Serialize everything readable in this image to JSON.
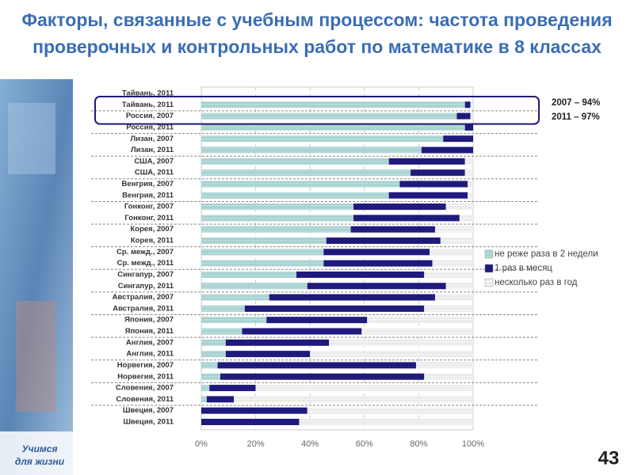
{
  "slide": {
    "logo": [
      "Учимся",
      "для жизни"
    ],
    "page_number": "43"
  },
  "chart_data": {
    "type": "bar",
    "orientation": "horizontal",
    "stacked": true,
    "title": "Факторы, связанные с учебным процессом: частота проведения проверочных и контрольных работ по математике в 8 классах",
    "categories": [
      "Тайвань, 2011",
      "Тайвань, 2011",
      "Россия, 2007",
      "Россия, 2011",
      "Лизан, 2007",
      "Лизан, 2011",
      "США, 2007",
      "США, 2011",
      "Венгрия, 2007",
      "Венгрия, 2011",
      "Гонконг, 2007",
      "Гонконг, 2011",
      "Корея, 2007",
      "Корея, 2011",
      "Ср. межд., 2007",
      "Ср. межд., 2011",
      "Сингапур, 2007",
      "Сингапур, 2011",
      "Австралия, 2007",
      "Австралия, 2011",
      "Япония, 2007",
      "Япония, 2011",
      "Англия, 2007",
      "Англия, 2011",
      "Норвегия, 2007",
      "Норвегия, 2011",
      "Словения, 2007",
      "Словения, 2011",
      "Швеция, 2007",
      "Швеция, 2011"
    ],
    "series": [
      {
        "name": "не реже раза в 2 недели",
        "color": "#b4dada",
        "values": [
          null,
          97,
          94,
          97,
          89,
          81,
          69,
          77,
          73,
          69,
          56,
          56,
          55,
          46,
          45,
          45,
          35,
          39,
          25,
          16,
          24,
          15,
          9,
          9,
          6,
          7,
          3,
          2,
          0,
          0
        ]
      },
      {
        "name": "1 раз в месяц",
        "color": "#1f1a7c",
        "values": [
          null,
          2,
          5,
          3,
          11,
          19,
          28,
          20,
          25,
          29,
          34,
          39,
          31,
          42,
          39,
          40,
          47,
          51,
          61,
          66,
          37,
          44,
          38,
          31,
          73,
          75,
          17,
          10,
          39,
          36
        ]
      },
      {
        "name": "несколько раз в год",
        "color": "#f2f2f2",
        "values": [
          null,
          1,
          1,
          0,
          0,
          0,
          3,
          3,
          2,
          2,
          10,
          5,
          14,
          12,
          16,
          15,
          18,
          10,
          14,
          18,
          39,
          41,
          53,
          60,
          21,
          18,
          80,
          88,
          61,
          64
        ]
      }
    ],
    "xlim": [
      0,
      100
    ],
    "xticks": [
      {
        "value": 0,
        "label": "0%"
      },
      {
        "value": 20,
        "label": "20%"
      },
      {
        "value": 40,
        "label": "40%"
      },
      {
        "value": 60,
        "label": "60%"
      },
      {
        "value": 80,
        "label": "80%"
      },
      {
        "value": 100,
        "label": "100%"
      }
    ],
    "annotations": [
      "2007 – 94%",
      "2011 – 97%"
    ],
    "legend": "right"
  }
}
